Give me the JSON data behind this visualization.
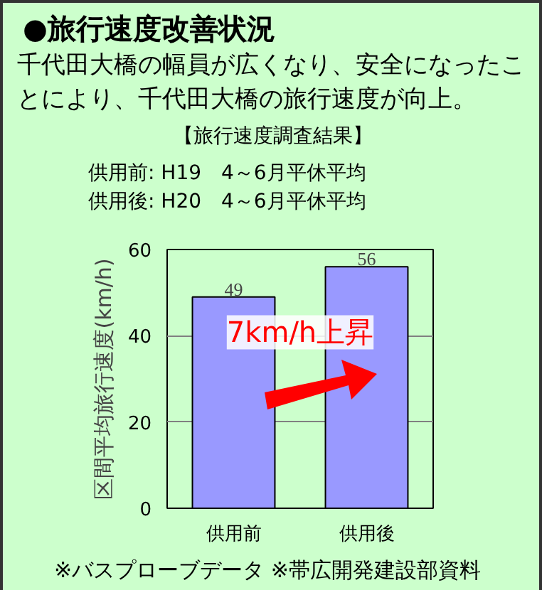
{
  "chart_data": {
    "type": "bar",
    "title": "●旅行速度改善状況",
    "subtitle": "千代田大橋の幅員が広くなり、安全になったことにより、千代田大橋の旅行速度が向上。",
    "ylabel": "区間平均旅行速度(km/h)",
    "categories": [
      "供用前",
      "供用後"
    ],
    "values": [
      49,
      56
    ],
    "color": "#9999ff",
    "ylim": [
      0,
      60
    ],
    "yticks": [
      0,
      20,
      40,
      60
    ],
    "grid": "y",
    "data_labels": true,
    "annotations": [
      "【旅行速度調査結果】",
      "供用前: H19　4～6月平休平均",
      "供用後: H20　4～6月平休平均",
      "7km/h上昇",
      "※バスプローブデータ ※帯広開発建設部資料"
    ]
  }
}
